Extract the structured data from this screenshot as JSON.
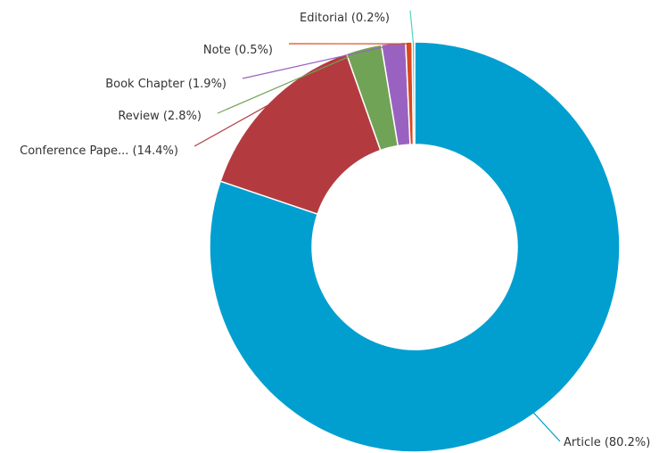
{
  "chart_data": {
    "type": "pie",
    "donut": true,
    "slices": [
      {
        "label": "Article (80.2%)",
        "value": 80.2,
        "color": "#009fd0"
      },
      {
        "label": "Conference Pape... (14.4%)",
        "value": 14.4,
        "color": "#b33b3f"
      },
      {
        "label": "Review (2.8%)",
        "value": 2.8,
        "color": "#71a356"
      },
      {
        "label": "Book Chapter (1.9%)",
        "value": 1.9,
        "color": "#9a62c0"
      },
      {
        "label": "Note (0.5%)",
        "value": 0.5,
        "color": "#d8491f"
      },
      {
        "label": "Editorial (0.2%)",
        "value": 0.2,
        "color": "#4fd1c3"
      }
    ]
  }
}
